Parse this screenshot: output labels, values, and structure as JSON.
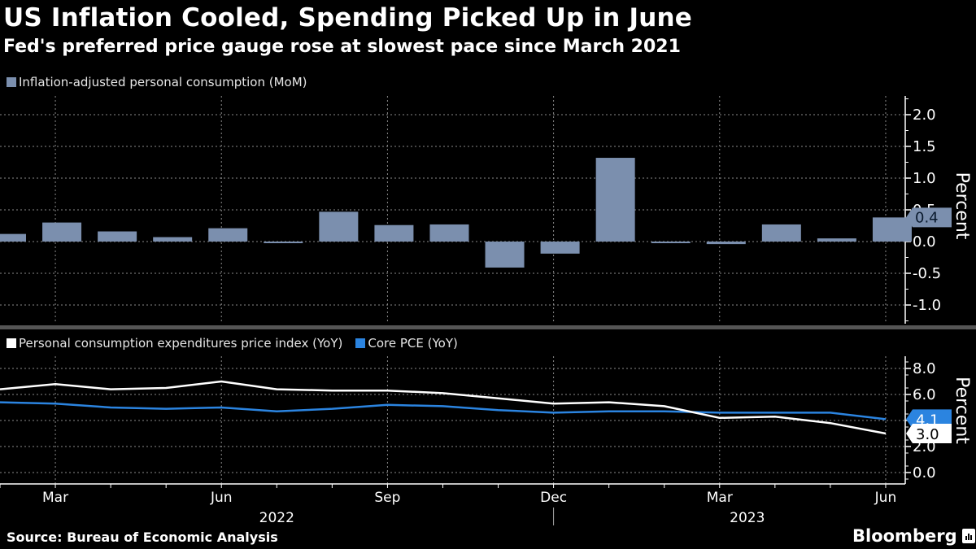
{
  "title": "US Inflation Cooled, Spending Picked Up in June",
  "subtitle": "Fed's preferred price gauge rose at slowest pace since March 2021",
  "source": "Source: Bureau of Economic Analysis",
  "brand": "Bloomberg",
  "brand_icon": "bloomberg-chart-icon",
  "colors": {
    "background": "#000000",
    "consumption_bar": "#7b8fae",
    "pce": "#ffffff",
    "core_pce": "#2b84e0",
    "grid": "#8a8a8a",
    "separator": "#555555"
  },
  "chart_data": [
    {
      "type": "bar",
      "legend": [
        {
          "name": "Inflation-adjusted personal consumption (MoM)",
          "color": "#7b8fae"
        }
      ],
      "legend_position": "top-left",
      "categories": [
        "Feb 2022",
        "Mar 2022",
        "Apr 2022",
        "May 2022",
        "Jun 2022",
        "Jul 2022",
        "Aug 2022",
        "Sep 2022",
        "Oct 2022",
        "Nov 2022",
        "Dec 2022",
        "Jan 2023",
        "Feb 2023",
        "Mar 2023",
        "Apr 2023",
        "May 2023",
        "Jun 2023"
      ],
      "series": [
        {
          "name": "Inflation-adjusted personal consumption (MoM)",
          "values": [
            0.12,
            0.3,
            0.16,
            0.07,
            0.21,
            -0.01,
            0.47,
            0.26,
            0.27,
            -0.41,
            -0.19,
            1.32,
            -0.02,
            -0.04,
            0.27,
            0.05,
            0.38
          ]
        }
      ],
      "ylabel": "Percent",
      "ylim": [
        -1.25,
        2.3
      ],
      "yticks": [
        "2.0",
        "1.5",
        "1.0",
        "0.5",
        "0.0",
        "-0.5",
        "-1.0"
      ],
      "ytick_values": [
        2.0,
        1.5,
        1.0,
        0.5,
        0.0,
        -0.5,
        -1.0
      ],
      "last_value_label": "0.4",
      "grid": true
    },
    {
      "type": "line",
      "legend": [
        {
          "name": "Personal consumption expenditures price index (YoY)",
          "color": "#ffffff"
        },
        {
          "name": "Core PCE (YoY)",
          "color": "#2b84e0"
        }
      ],
      "legend_position": "top-left",
      "categories": [
        "Feb 2022",
        "Mar 2022",
        "Apr 2022",
        "May 2022",
        "Jun 2022",
        "Jul 2022",
        "Aug 2022",
        "Sep 2022",
        "Oct 2022",
        "Nov 2022",
        "Dec 2022",
        "Jan 2023",
        "Feb 2023",
        "Mar 2023",
        "Apr 2023",
        "May 2023",
        "Jun 2023"
      ],
      "series": [
        {
          "name": "Personal consumption expenditures price index (YoY)",
          "values": [
            6.4,
            6.8,
            6.4,
            6.5,
            7.0,
            6.4,
            6.3,
            6.3,
            6.1,
            5.7,
            5.3,
            5.4,
            5.1,
            4.2,
            4.3,
            3.8,
            3.0
          ]
        },
        {
          "name": "Core PCE (YoY)",
          "values": [
            5.4,
            5.3,
            5.0,
            4.9,
            5.0,
            4.7,
            4.9,
            5.2,
            5.1,
            4.8,
            4.6,
            4.7,
            4.7,
            4.6,
            4.6,
            4.6,
            4.1
          ]
        }
      ],
      "ylabel": "Percent",
      "ylim": [
        -0.9,
        8.9
      ],
      "yticks": [
        "8.0",
        "6.0",
        "4.0",
        "2.0",
        "0.0"
      ],
      "ytick_values": [
        8.0,
        6.0,
        4.0,
        2.0,
        0.0
      ],
      "last_value_labels": {
        "pce": "3.0",
        "core_pce": "4.1"
      },
      "grid": true
    }
  ],
  "x_axis": {
    "month_labels": [
      {
        "index": 1,
        "label": "Mar"
      },
      {
        "index": 4,
        "label": "Jun"
      },
      {
        "index": 7,
        "label": "Sep"
      },
      {
        "index": 10,
        "label": "Dec"
      },
      {
        "index": 13,
        "label": "Mar"
      },
      {
        "index": 16,
        "label": "Jun"
      }
    ],
    "year_labels": [
      {
        "center_index": 5,
        "label": "2022"
      },
      {
        "center_index": 13.5,
        "label": "2023"
      }
    ],
    "year_divider_index": 10
  }
}
